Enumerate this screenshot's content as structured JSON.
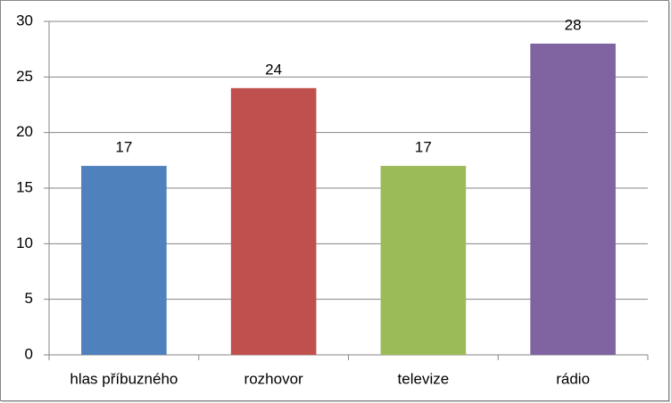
{
  "chart_data": {
    "type": "bar",
    "categories": [
      "hlas příbuzného",
      "rozhovor",
      "televize",
      "rádio"
    ],
    "values": [
      17,
      24,
      17,
      28
    ],
    "colors": [
      "#4f81bd",
      "#c0504d",
      "#9bbb59",
      "#8064a2"
    ],
    "ylim": [
      0,
      30
    ],
    "yticks": [
      0,
      5,
      10,
      15,
      20,
      25,
      30
    ],
    "grid": true,
    "data_labels": true
  }
}
